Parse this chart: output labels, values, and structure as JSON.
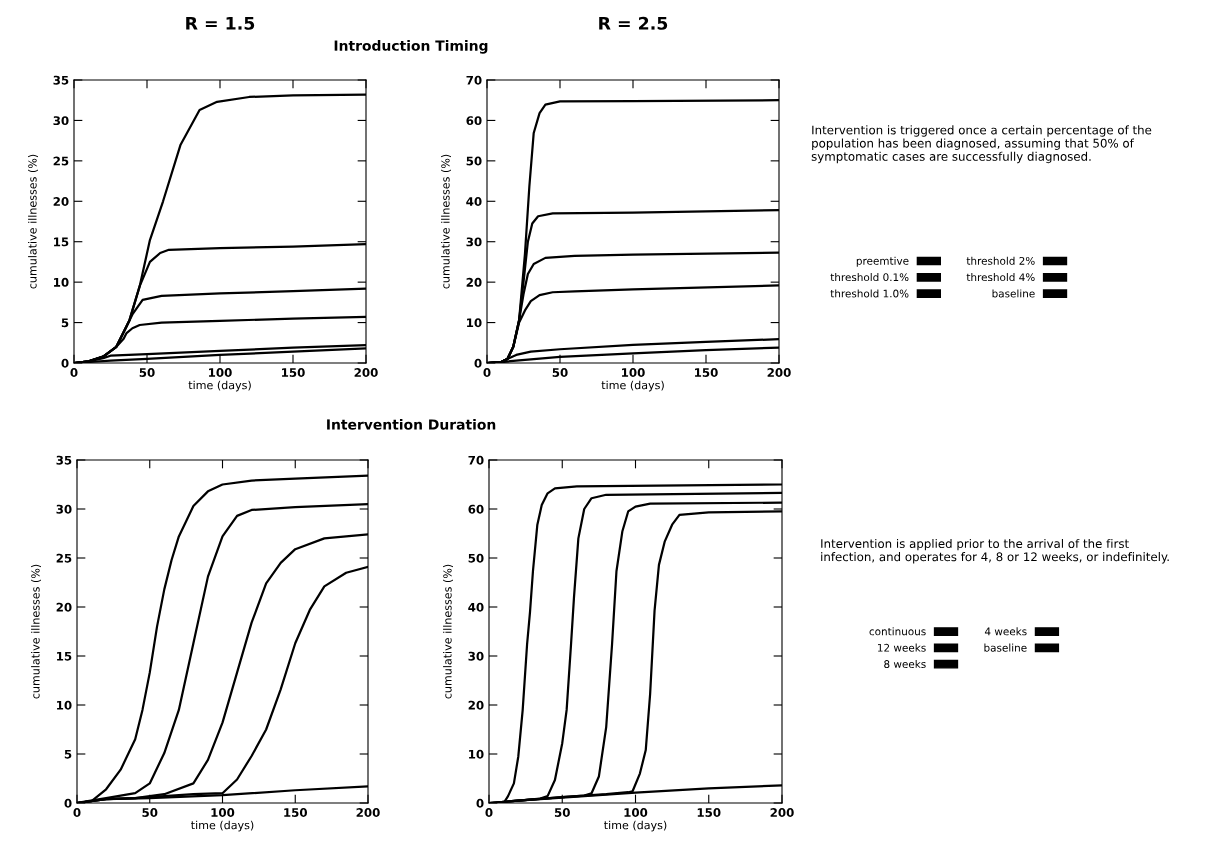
{
  "chart_data": [
    {
      "type": "line",
      "title": "R = 1.5",
      "subtitle": "Introduction Timing",
      "xlabel": "time (days)",
      "ylabel": "cumulative illnesses (%)",
      "xlim": [
        0,
        200
      ],
      "ylim": [
        0,
        35
      ],
      "xticks": [
        0,
        50,
        100,
        150,
        200
      ],
      "yticks": [
        0,
        5,
        10,
        15,
        20,
        25,
        30,
        35
      ],
      "grid": false,
      "line_style": "solid",
      "series": [
        {
          "color": "#000000",
          "x": [
            0,
            25,
            50,
            100,
            150,
            200
          ],
          "values": [
            0,
            0.3,
            0.5,
            1.0,
            1.4,
            1.8
          ]
        },
        {
          "color": "#000000",
          "x": [
            0,
            10,
            20,
            25,
            50,
            100,
            150,
            200
          ],
          "values": [
            0,
            0.2,
            0.6,
            0.9,
            1.1,
            1.5,
            1.9,
            2.2
          ]
        },
        {
          "color": "#000000",
          "x": [
            0,
            10,
            20,
            29,
            34,
            36,
            40,
            45,
            60,
            100,
            150,
            200
          ],
          "values": [
            0,
            0.2,
            0.8,
            2,
            3,
            3.7,
            4.3,
            4.7,
            5,
            5.2,
            5.5,
            5.7
          ]
        },
        {
          "color": "#000000",
          "x": [
            0,
            10,
            20,
            29,
            36,
            40,
            47,
            60,
            100,
            150,
            200
          ],
          "values": [
            0,
            0.2,
            0.8,
            2,
            4.5,
            6,
            7.8,
            8.3,
            8.6,
            8.9,
            9.2
          ]
        },
        {
          "color": "#000000",
          "x": [
            0,
            10,
            20,
            29,
            38,
            45,
            52,
            59,
            65,
            100,
            150,
            200
          ],
          "values": [
            0,
            0.2,
            0.8,
            2,
            5.3,
            9.5,
            12.5,
            13.6,
            14,
            14.2,
            14.4,
            14.7
          ]
        },
        {
          "color": "#000000",
          "x": [
            0,
            10,
            20,
            29,
            38,
            45,
            52,
            61,
            73,
            86,
            98,
            120,
            150,
            200
          ],
          "values": [
            0,
            0.2,
            0.8,
            2,
            5.3,
            9.5,
            15.2,
            20,
            27,
            31.3,
            32.3,
            32.9,
            33.1,
            33.2
          ]
        }
      ]
    },
    {
      "type": "line",
      "title": "R = 2.5",
      "xlabel": "time (days)",
      "ylabel": "cumulative illnesses (%)",
      "xlim": [
        0,
        200
      ],
      "ylim": [
        0,
        70
      ],
      "xticks": [
        0,
        50,
        100,
        150,
        200
      ],
      "yticks": [
        0,
        10,
        20,
        30,
        40,
        50,
        60,
        70
      ],
      "grid": false,
      "line_style": "solid",
      "legend": "right",
      "annotations": [
        "Intervention is triggered once a certain percentage of the\npopulation has been diagnosed, assuming that 50% of\nsymptomatic cases are successfully diagnosed."
      ],
      "series": [
        {
          "name": "preemtive",
          "color": "#000000",
          "x": [
            0,
            10,
            20,
            50,
            100,
            150,
            200
          ],
          "values": [
            0,
            0.2,
            0.6,
            1.5,
            2.4,
            3.2,
            3.8
          ]
        },
        {
          "name": "threshold 0.1%",
          "color": "#000000",
          "x": [
            0,
            10,
            15,
            20,
            30,
            50,
            100,
            150,
            200
          ],
          "values": [
            0,
            0.3,
            1.2,
            2,
            2.8,
            3.4,
            4.5,
            5.2,
            5.9
          ]
        },
        {
          "name": "threshold 1.0%",
          "color": "#000000",
          "x": [
            0,
            10,
            14,
            18,
            22,
            26,
            30,
            36,
            45,
            60,
            100,
            200
          ],
          "values": [
            0,
            0.3,
            1,
            4,
            10,
            13,
            15.3,
            16.8,
            17.5,
            17.7,
            18.2,
            19.2
          ]
        },
        {
          "name": "threshold 2%",
          "color": "#000000",
          "x": [
            0,
            10,
            14,
            18,
            22,
            25,
            28,
            32,
            40,
            60,
            100,
            200
          ],
          "values": [
            0,
            0.3,
            1,
            4,
            10.6,
            17,
            22,
            24.5,
            26,
            26.5,
            26.8,
            27.3
          ]
        },
        {
          "name": "threshold 4%",
          "color": "#000000",
          "x": [
            0,
            10,
            14,
            18,
            22,
            25,
            28,
            31,
            35,
            45,
            100,
            200
          ],
          "values": [
            0,
            0.3,
            1,
            4,
            10.6,
            20,
            30,
            34.5,
            36.3,
            37,
            37.2,
            37.8
          ]
        },
        {
          "name": "baseline",
          "color": "#000000",
          "x": [
            0,
            10,
            14,
            18,
            22,
            26,
            29,
            32,
            36,
            40,
            50,
            100,
            200
          ],
          "values": [
            0,
            0.3,
            1,
            4,
            10.6,
            27,
            43.6,
            56.9,
            61.8,
            63.9,
            64.7,
            64.8,
            65
          ]
        }
      ]
    },
    {
      "type": "line",
      "subtitle": "Intervention Duration",
      "xlabel": "time (days)",
      "ylabel": "cumulative illnesses (%)",
      "xlim": [
        0,
        200
      ],
      "ylim": [
        0,
        35
      ],
      "xticks": [
        0,
        50,
        100,
        150,
        200
      ],
      "yticks": [
        0,
        5,
        10,
        15,
        20,
        25,
        30,
        35
      ],
      "grid": false,
      "line_style": "solid",
      "series": [
        {
          "color": "#000000",
          "x": [
            0,
            20,
            50,
            100,
            150,
            200
          ],
          "values": [
            0,
            0.4,
            0.5,
            0.8,
            1.3,
            1.7
          ]
        },
        {
          "color": "#000000",
          "x": [
            0,
            20,
            40,
            60,
            80,
            100,
            110,
            120,
            130,
            140,
            150,
            160,
            170,
            185,
            200
          ],
          "values": [
            0,
            0.4,
            0.5,
            0.7,
            0.9,
            1,
            2.4,
            4.8,
            7.5,
            11.6,
            16.3,
            19.7,
            22.1,
            23.5,
            24.1
          ]
        },
        {
          "color": "#000000",
          "x": [
            0,
            20,
            40,
            60,
            80,
            90,
            100,
            110,
            120,
            130,
            140,
            150,
            170,
            200
          ],
          "values": [
            0,
            0.4,
            0.5,
            0.9,
            2,
            4.4,
            8.2,
            13.3,
            18.4,
            22.4,
            24.5,
            25.9,
            27,
            27.4
          ]
        },
        {
          "color": "#000000",
          "x": [
            0,
            20,
            40,
            50,
            60,
            70,
            80,
            90,
            100,
            110,
            120,
            150,
            200
          ],
          "values": [
            0,
            0.5,
            1,
            2,
            5.1,
            9.5,
            16.3,
            23.1,
            27.2,
            29.3,
            29.9,
            30.2,
            30.5
          ]
        },
        {
          "color": "#000000",
          "x": [
            0,
            10,
            20,
            30,
            40,
            45,
            50,
            55,
            60,
            65,
            70,
            80,
            90,
            100,
            120,
            150,
            200
          ],
          "values": [
            0,
            0.2,
            1.4,
            3.4,
            6.5,
            9.5,
            13.3,
            18,
            21.8,
            24.8,
            27.2,
            30.3,
            31.8,
            32.5,
            32.9,
            33.1,
            33.4
          ]
        }
      ]
    },
    {
      "type": "line",
      "xlabel": "time (days)",
      "ylabel": "cumulative illnesses (%)",
      "xlim": [
        0,
        200
      ],
      "ylim": [
        0,
        70
      ],
      "xticks": [
        0,
        50,
        100,
        150,
        200
      ],
      "yticks": [
        0,
        10,
        20,
        30,
        40,
        50,
        60,
        70
      ],
      "grid": false,
      "line_style": "solid",
      "legend": "right",
      "annotations": [
        "Intervention is applied prior to the arrival of the first\ninfection, and operates for 4, 8 or 12 weeks, or indefinitely."
      ],
      "series": [
        {
          "name": "continuous",
          "color": "#000000",
          "x": [
            0,
            20,
            60,
            100,
            150,
            200
          ],
          "values": [
            0,
            0.5,
            1.3,
            2.1,
            3,
            3.6
          ]
        },
        {
          "name": "12 weeks",
          "color": "#000000",
          "x": [
            0,
            20,
            50,
            80,
            95,
            98,
            103,
            107,
            110,
            113,
            116,
            120,
            125,
            130,
            150,
            200
          ],
          "values": [
            0,
            0.5,
            1.2,
            1.8,
            2.2,
            2.4,
            6,
            10.8,
            22.3,
            39.2,
            48.6,
            53.4,
            56.8,
            58.8,
            59.3,
            59.5
          ]
        },
        {
          "name": "8 weeks",
          "color": "#000000",
          "x": [
            0,
            20,
            50,
            65,
            70,
            75,
            80,
            84,
            87,
            91,
            95,
            100,
            110,
            200
          ],
          "values": [
            0,
            0.5,
            1.2,
            1.5,
            2,
            5.4,
            15.5,
            32.4,
            47.3,
            55.4,
            59.5,
            60.5,
            61.1,
            61.3
          ]
        },
        {
          "name": "4 weeks",
          "color": "#000000",
          "x": [
            0,
            5,
            20,
            35,
            40,
            45,
            50,
            53,
            56,
            58,
            61,
            65,
            70,
            80,
            200
          ],
          "values": [
            0,
            0,
            0.5,
            0.9,
            1.4,
            4.7,
            12.2,
            19,
            32.4,
            41.9,
            54,
            60,
            62.2,
            62.9,
            63.3
          ]
        },
        {
          "name": "baseline",
          "color": "#000000",
          "x": [
            0,
            10,
            13,
            17,
            20,
            23,
            26,
            28,
            30,
            33,
            36,
            40,
            45,
            60,
            200
          ],
          "values": [
            0,
            0,
            1.4,
            4,
            9.5,
            19,
            32.4,
            39,
            47.3,
            56.8,
            60.8,
            63.2,
            64.2,
            64.6,
            65
          ]
        }
      ]
    }
  ]
}
